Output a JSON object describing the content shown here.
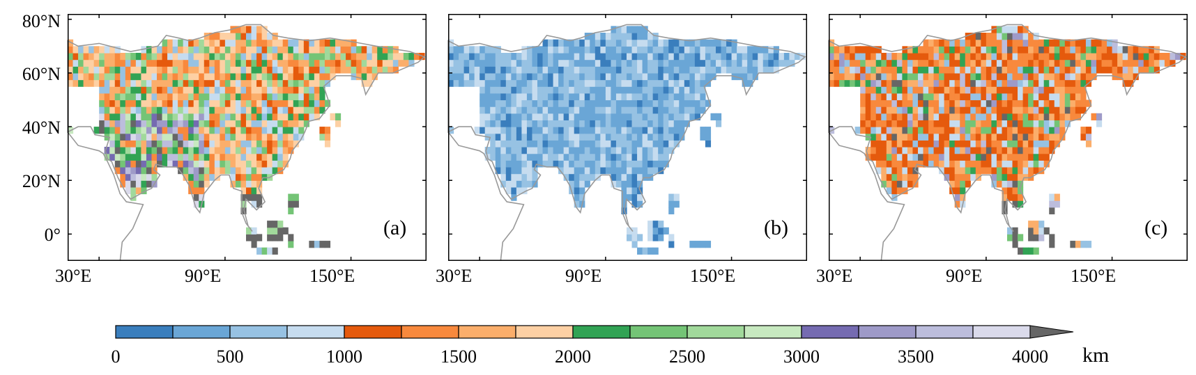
{
  "axes": {
    "lat_ticks": [
      "80°N",
      "60°N",
      "40°N",
      "20°N",
      "0°"
    ],
    "lon_ticks": [
      "30°E",
      "90°E",
      "150°E"
    ]
  },
  "panels": [
    {
      "label": "(a)",
      "scheme": "mixed"
    },
    {
      "label": "(b)",
      "scheme": "blue"
    },
    {
      "label": "(c)",
      "scheme": "orange"
    }
  ],
  "colorbar": {
    "unit": "km",
    "tick_labels": [
      "0",
      "500",
      "1000",
      "1500",
      "2000",
      "2500",
      "3000",
      "3500",
      "4000"
    ],
    "bins": [
      0,
      250,
      500,
      750,
      1000,
      1250,
      1500,
      1750,
      2000,
      2250,
      2500,
      2750,
      3000,
      3250,
      3500,
      3750,
      4000
    ],
    "colors": [
      "#3a7ebd",
      "#6aa6d6",
      "#97c2e3",
      "#c6dcef",
      "#e55a0d",
      "#f8893d",
      "#fbae6b",
      "#fdd0a4",
      "#31a354",
      "#74c476",
      "#a1d99b",
      "#c7e9c0",
      "#756bb1",
      "#9e9ac8",
      "#bcbddc",
      "#dadaeb"
    ],
    "extend": "max",
    "extend_color": "#666666"
  },
  "coast_color": "#999999"
}
